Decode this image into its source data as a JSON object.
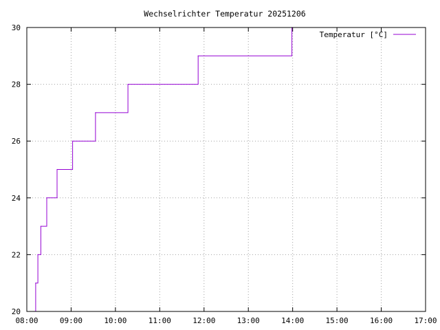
{
  "chart_data": {
    "type": "line",
    "title": "Wechselrichter Temperatur 20251206",
    "xlabel": "",
    "ylabel": "",
    "x_ticks": [
      "08:00",
      "09:00",
      "10:00",
      "11:00",
      "12:00",
      "13:00",
      "14:00",
      "15:00",
      "16:00",
      "17:00"
    ],
    "y_ticks": [
      "20",
      "22",
      "24",
      "26",
      "28",
      "30"
    ],
    "xlim": [
      "08:00",
      "17:00"
    ],
    "ylim": [
      20,
      30
    ],
    "grid": true,
    "legend_position": "top-right",
    "series": [
      {
        "name": "Temperatur [°C]",
        "color": "#9400d3",
        "step": true,
        "points": [
          {
            "x": "08:10",
            "y": 20
          },
          {
            "x": "08:12",
            "y": 21
          },
          {
            "x": "08:15",
            "y": 22
          },
          {
            "x": "08:19",
            "y": 23
          },
          {
            "x": "08:27",
            "y": 24
          },
          {
            "x": "08:41",
            "y": 25
          },
          {
            "x": "09:02",
            "y": 26
          },
          {
            "x": "09:33",
            "y": 27
          },
          {
            "x": "10:17",
            "y": 28
          },
          {
            "x": "11:52",
            "y": 29
          },
          {
            "x": "13:59",
            "y": 30
          },
          {
            "x": "14:00",
            "y": 30
          }
        ]
      }
    ]
  }
}
